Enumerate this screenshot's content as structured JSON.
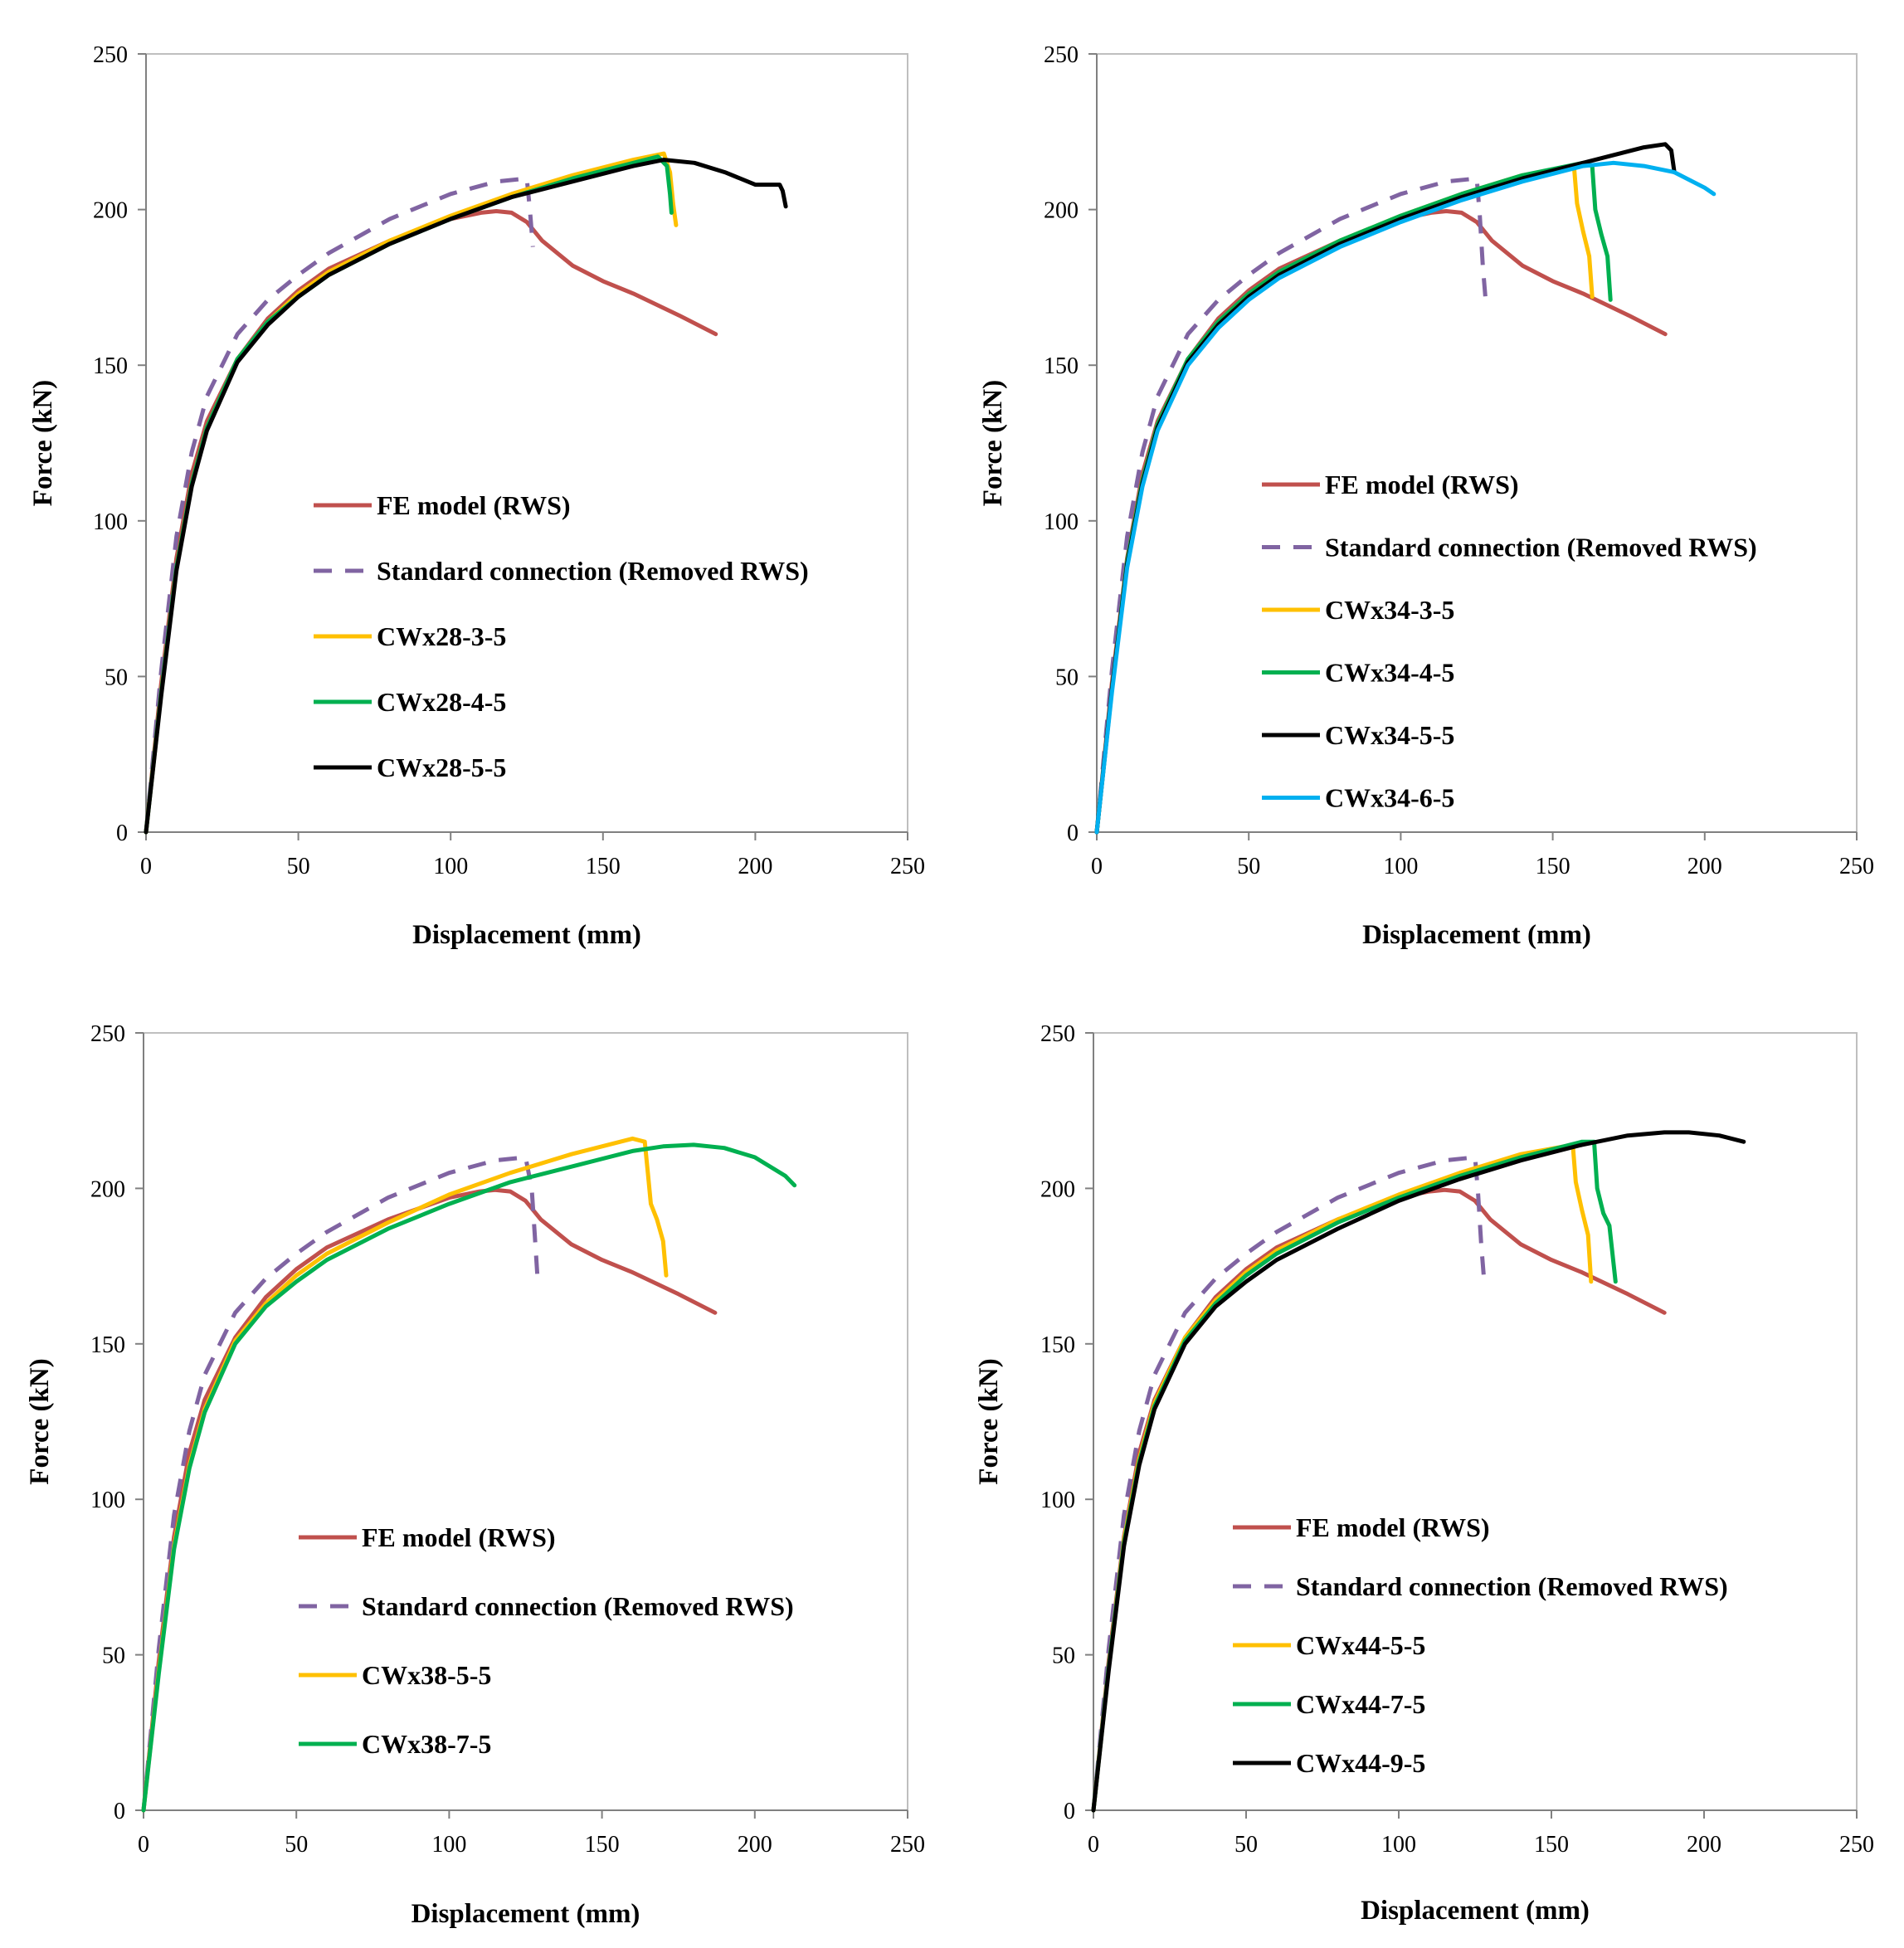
{
  "chart_data": [
    {
      "type": "line",
      "title": "",
      "xlabel": "Displacement (mm)",
      "ylabel": "Force (kN)",
      "xlim": [
        0,
        250
      ],
      "ylim": [
        0,
        250
      ],
      "xticks": [
        "0",
        "50",
        "100",
        "150",
        "200",
        "250"
      ],
      "yticks": [
        "0",
        "50",
        "100",
        "150",
        "200",
        "250"
      ],
      "grid": false,
      "legend_position": "center-left",
      "series": [
        {
          "name": "FE model (RWS)",
          "color": "#c0504d",
          "dash": "solid",
          "x": [
            0,
            5,
            10,
            15,
            20,
            30,
            40,
            50,
            60,
            80,
            100,
            110,
            115,
            120,
            125,
            130,
            140,
            150,
            160,
            175,
            187
          ],
          "y": [
            0,
            48,
            88,
            115,
            132,
            152,
            165,
            174,
            181,
            190,
            197,
            199,
            199.5,
            199,
            196,
            190,
            182,
            177,
            173,
            166,
            160
          ]
        },
        {
          "name": "Standard connection (Removed RWS)",
          "color": "#8064a2",
          "dash": "dashed",
          "x": [
            0,
            5,
            10,
            15,
            20,
            30,
            40,
            50,
            60,
            80,
            100,
            115,
            125,
            126,
            127
          ],
          "y": [
            0,
            52,
            95,
            122,
            140,
            160,
            171,
            179,
            186,
            197,
            205,
            209,
            210,
            200,
            188
          ]
        },
        {
          "name": "CWx28-3-5",
          "color": "#ffc000",
          "dash": "solid",
          "x": [
            0,
            5,
            10,
            15,
            20,
            30,
            40,
            50,
            60,
            80,
            100,
            120,
            140,
            160,
            170,
            172,
            173,
            174
          ],
          "y": [
            0,
            45,
            85,
            112,
            130,
            152,
            164,
            173,
            180,
            190,
            198,
            205,
            211,
            216,
            218,
            212,
            202,
            195
          ]
        },
        {
          "name": "CWx28-4-5",
          "color": "#00b050",
          "dash": "solid",
          "x": [
            0,
            5,
            10,
            15,
            20,
            30,
            40,
            50,
            60,
            80,
            100,
            120,
            140,
            160,
            168,
            171,
            172,
            172.5
          ],
          "y": [
            0,
            45,
            85,
            112,
            130,
            152,
            164,
            172,
            179,
            189,
            197,
            204,
            210,
            215,
            217,
            214,
            205,
            199
          ]
        },
        {
          "name": "CWx28-5-5",
          "color": "#000000",
          "dash": "solid",
          "x": [
            0,
            5,
            10,
            15,
            20,
            30,
            40,
            50,
            60,
            80,
            100,
            120,
            140,
            160,
            170,
            180,
            190,
            200,
            205,
            208,
            209,
            210
          ],
          "y": [
            0,
            44,
            84,
            111,
            129,
            151,
            163,
            172,
            179,
            189,
            197,
            204,
            209,
            214,
            216,
            215,
            212,
            208,
            208,
            208,
            206,
            201
          ]
        }
      ]
    },
    {
      "type": "line",
      "title": "",
      "xlabel": "Displacement (mm)",
      "ylabel": "Force (kN)",
      "xlim": [
        0,
        250
      ],
      "ylim": [
        0,
        250
      ],
      "xticks": [
        "0",
        "50",
        "100",
        "150",
        "200",
        "250"
      ],
      "yticks": [
        "0",
        "50",
        "100",
        "150",
        "200",
        "250"
      ],
      "grid": false,
      "legend_position": "center-left",
      "series": [
        {
          "name": "FE model (RWS)",
          "color": "#c0504d",
          "dash": "solid",
          "x": [
            0,
            5,
            10,
            15,
            20,
            30,
            40,
            50,
            60,
            80,
            100,
            110,
            115,
            120,
            125,
            130,
            140,
            150,
            160,
            175,
            187
          ],
          "y": [
            0,
            48,
            88,
            115,
            132,
            152,
            165,
            174,
            181,
            190,
            197,
            199,
            199.5,
            199,
            196,
            190,
            182,
            177,
            173,
            166,
            160
          ]
        },
        {
          "name": "Standard connection (Removed RWS)",
          "color": "#8064a2",
          "dash": "dashed",
          "x": [
            0,
            5,
            10,
            15,
            20,
            30,
            40,
            50,
            60,
            80,
            100,
            115,
            125,
            126,
            127,
            128
          ],
          "y": [
            0,
            52,
            95,
            122,
            140,
            160,
            171,
            179,
            186,
            197,
            205,
            209,
            210,
            198,
            182,
            170
          ]
        },
        {
          "name": "CWx34-3-5",
          "color": "#ffc000",
          "dash": "solid",
          "x": [
            0,
            5,
            10,
            15,
            20,
            30,
            40,
            50,
            60,
            80,
            100,
            120,
            140,
            157,
            158,
            160,
            162,
            163
          ],
          "y": [
            0,
            46,
            87,
            113,
            131,
            152,
            164,
            173,
            180,
            190,
            198,
            205,
            211,
            214,
            202,
            193,
            185,
            172
          ]
        },
        {
          "name": "CWx34-4-5",
          "color": "#00b050",
          "dash": "solid",
          "x": [
            0,
            5,
            10,
            15,
            20,
            30,
            40,
            50,
            60,
            80,
            100,
            120,
            140,
            160,
            163,
            164,
            166,
            168,
            169
          ],
          "y": [
            0,
            46,
            87,
            113,
            131,
            152,
            164,
            173,
            180,
            190,
            198,
            205,
            211,
            215,
            214,
            200,
            192,
            185,
            171
          ]
        },
        {
          "name": "CWx34-5-5",
          "color": "#000000",
          "dash": "solid",
          "x": [
            0,
            5,
            10,
            15,
            20,
            30,
            40,
            50,
            60,
            80,
            100,
            120,
            140,
            160,
            180,
            187,
            189,
            190
          ],
          "y": [
            0,
            46,
            86,
            112,
            130,
            151,
            163,
            172,
            179,
            189,
            197,
            204,
            210,
            215,
            220,
            221,
            219,
            212
          ]
        },
        {
          "name": "CWx34-6-5",
          "color": "#00b0f0",
          "dash": "solid",
          "x": [
            0,
            5,
            10,
            15,
            20,
            30,
            40,
            50,
            60,
            80,
            100,
            120,
            140,
            160,
            170,
            180,
            190,
            200,
            203
          ],
          "y": [
            0,
            45,
            85,
            111,
            129,
            150,
            162,
            171,
            178,
            188,
            196,
            203,
            209,
            214,
            215,
            214,
            212,
            207,
            205
          ]
        }
      ]
    },
    {
      "type": "line",
      "title": "",
      "xlabel": "Displacement (mm)",
      "ylabel": "Force (kN)",
      "xlim": [
        0,
        250
      ],
      "ylim": [
        0,
        250
      ],
      "xticks": [
        "0",
        "50",
        "100",
        "150",
        "200",
        "250"
      ],
      "yticks": [
        "0",
        "50",
        "100",
        "150",
        "200",
        "250"
      ],
      "grid": false,
      "legend_position": "center-left",
      "series": [
        {
          "name": "FE model (RWS)",
          "color": "#c0504d",
          "dash": "solid",
          "x": [
            0,
            5,
            10,
            15,
            20,
            30,
            40,
            50,
            60,
            80,
            100,
            110,
            115,
            120,
            125,
            130,
            140,
            150,
            160,
            175,
            187
          ],
          "y": [
            0,
            48,
            88,
            115,
            132,
            152,
            165,
            174,
            181,
            190,
            197,
            199,
            199.5,
            199,
            196,
            190,
            182,
            177,
            173,
            166,
            160
          ]
        },
        {
          "name": "Standard connection (Removed RWS)",
          "color": "#8064a2",
          "dash": "dashed",
          "x": [
            0,
            5,
            10,
            15,
            20,
            30,
            40,
            50,
            60,
            80,
            100,
            115,
            125,
            127,
            128,
            129
          ],
          "y": [
            0,
            52,
            95,
            122,
            140,
            160,
            171,
            179,
            186,
            197,
            205,
            209,
            210,
            200,
            185,
            170
          ]
        },
        {
          "name": "CWx38-5-5",
          "color": "#ffc000",
          "dash": "solid",
          "x": [
            0,
            5,
            10,
            15,
            20,
            30,
            40,
            50,
            60,
            80,
            100,
            120,
            140,
            160,
            164,
            165,
            166,
            168,
            170,
            171
          ],
          "y": [
            0,
            45,
            85,
            111,
            129,
            151,
            163,
            172,
            179,
            189,
            198,
            205,
            211,
            216,
            215,
            205,
            195,
            190,
            183,
            172
          ]
        },
        {
          "name": "CWx38-7-5",
          "color": "#00b050",
          "dash": "solid",
          "x": [
            0,
            5,
            10,
            15,
            20,
            30,
            40,
            50,
            60,
            80,
            100,
            120,
            140,
            160,
            170,
            180,
            190,
            200,
            210,
            213
          ],
          "y": [
            0,
            44,
            84,
            110,
            128,
            150,
            162,
            170,
            177,
            187,
            195,
            202,
            207,
            212,
            213.5,
            214,
            213,
            210,
            204,
            201
          ]
        }
      ]
    },
    {
      "type": "line",
      "title": "",
      "xlabel": "Displacement (mm)",
      "ylabel": "Force  (kN)",
      "xlim": [
        0,
        250
      ],
      "ylim": [
        0,
        250
      ],
      "xticks": [
        "0",
        "50",
        "100",
        "150",
        "200",
        "250"
      ],
      "yticks": [
        "0",
        "50",
        "100",
        "150",
        "200",
        "250"
      ],
      "grid": false,
      "legend_position": "center-left",
      "series": [
        {
          "name": "FE model (RWS)",
          "color": "#c0504d",
          "dash": "solid",
          "x": [
            0,
            5,
            10,
            15,
            20,
            30,
            40,
            50,
            60,
            80,
            100,
            110,
            115,
            120,
            125,
            130,
            140,
            150,
            160,
            175,
            187
          ],
          "y": [
            0,
            48,
            88,
            115,
            132,
            152,
            165,
            174,
            181,
            190,
            197,
            199,
            199.5,
            199,
            196,
            190,
            182,
            177,
            173,
            166,
            160
          ]
        },
        {
          "name": "Standard connection (Removed RWS)",
          "color": "#8064a2",
          "dash": "dashed",
          "x": [
            0,
            5,
            10,
            15,
            20,
            30,
            40,
            50,
            60,
            80,
            100,
            115,
            125,
            126,
            127,
            128
          ],
          "y": [
            0,
            52,
            95,
            122,
            140,
            160,
            171,
            179,
            186,
            197,
            205,
            209,
            210,
            198,
            182,
            170
          ]
        },
        {
          "name": "CWx44-5-5",
          "color": "#ffc000",
          "dash": "solid",
          "x": [
            0,
            5,
            10,
            15,
            20,
            30,
            40,
            50,
            60,
            80,
            100,
            120,
            140,
            157,
            158,
            160,
            162,
            163
          ],
          "y": [
            0,
            46,
            87,
            113,
            131,
            152,
            164,
            173,
            180,
            190,
            198,
            205,
            211,
            214,
            202,
            193,
            185,
            170
          ]
        },
        {
          "name": "CWx44-7-5",
          "color": "#00b050",
          "dash": "solid",
          "x": [
            0,
            5,
            10,
            15,
            20,
            30,
            40,
            50,
            60,
            80,
            100,
            120,
            140,
            160,
            164,
            165,
            167,
            169,
            171
          ],
          "y": [
            0,
            46,
            86,
            112,
            130,
            151,
            163,
            172,
            179,
            189,
            197,
            204,
            210,
            215,
            215,
            200,
            192,
            188,
            170
          ]
        },
        {
          "name": "CWx44-9-5",
          "color": "#000000",
          "dash": "solid",
          "x": [
            0,
            5,
            10,
            15,
            20,
            30,
            40,
            50,
            60,
            80,
            100,
            120,
            140,
            160,
            175,
            187,
            195,
            205,
            213
          ],
          "y": [
            0,
            45,
            85,
            111,
            129,
            150,
            162,
            170,
            177,
            187,
            196,
            203,
            209,
            214,
            217,
            218,
            218,
            217,
            215
          ]
        }
      ]
    }
  ]
}
